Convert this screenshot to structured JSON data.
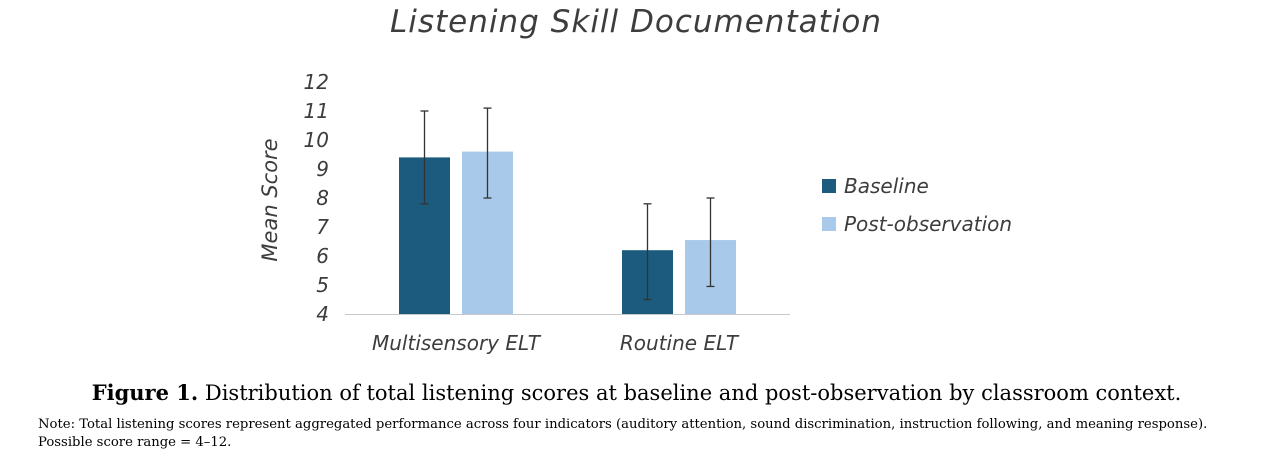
{
  "chart_data": {
    "type": "bar",
    "title": "Listening Skill Documentation",
    "ylabel": "Mean Score",
    "xlabel": "",
    "categories": [
      "Multisensory ELT",
      "Routine ELT"
    ],
    "series": [
      {
        "name": "Baseline",
        "color": "#1c5b7d",
        "values": [
          9.4,
          6.2
        ],
        "err_low": [
          7.8,
          4.5
        ],
        "err_high": [
          11.0,
          7.8
        ]
      },
      {
        "name": "Post-observation",
        "color": "#a8c9ea",
        "values": [
          9.6,
          6.55
        ],
        "err_low": [
          8.0,
          4.95
        ],
        "err_high": [
          11.1,
          8.0
        ]
      }
    ],
    "ylim": [
      4,
      12
    ],
    "yticks": [
      4,
      5,
      6,
      7,
      8,
      9,
      10,
      11,
      12
    ],
    "grid": false,
    "legend": "right"
  },
  "caption": {
    "label": "Figure 1.",
    "text": "Distribution of total listening scores at baseline and post-observation by classroom context."
  },
  "note": "Note: Total listening scores represent aggregated performance across four indicators (auditory attention, sound discrimination, instruction following, and meaning response). Possible score range = 4–12."
}
